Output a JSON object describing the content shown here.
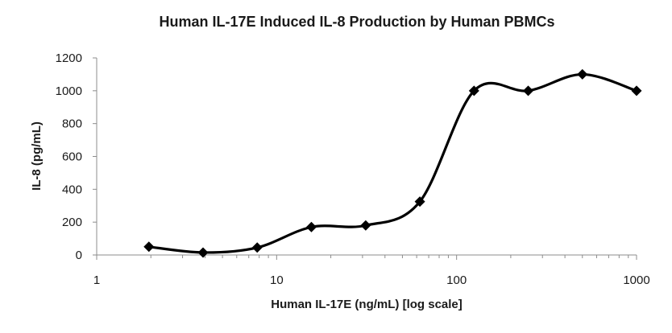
{
  "chart_data": {
    "type": "line",
    "title": "Human IL-17E Induced IL-8 Production by Human PBMCs",
    "xlabel": "Human IL-17E (ng/mL) [log scale]",
    "ylabel": "IL-8 (pg/mL)",
    "x_scale": "log",
    "xlim": [
      1,
      1000
    ],
    "ylim": [
      0,
      1200
    ],
    "x_ticks": [
      1,
      10,
      100,
      1000
    ],
    "x_tick_labels": [
      "1",
      "10",
      "100",
      "1000"
    ],
    "y_ticks": [
      0,
      200,
      400,
      600,
      800,
      1000,
      1200
    ],
    "y_tick_labels": [
      "0",
      "200",
      "400",
      "600",
      "800",
      "1000",
      "1200"
    ],
    "grid": false,
    "legend": false,
    "smooth": true,
    "marker": "diamond",
    "line_color": "#000000",
    "series": [
      {
        "x": [
          1.95,
          3.9,
          7.8,
          15.6,
          31.25,
          62.5,
          125,
          250,
          500,
          1000
        ],
        "y": [
          50,
          15,
          45,
          170,
          180,
          325,
          1000,
          1000,
          1100,
          1000
        ]
      }
    ]
  }
}
